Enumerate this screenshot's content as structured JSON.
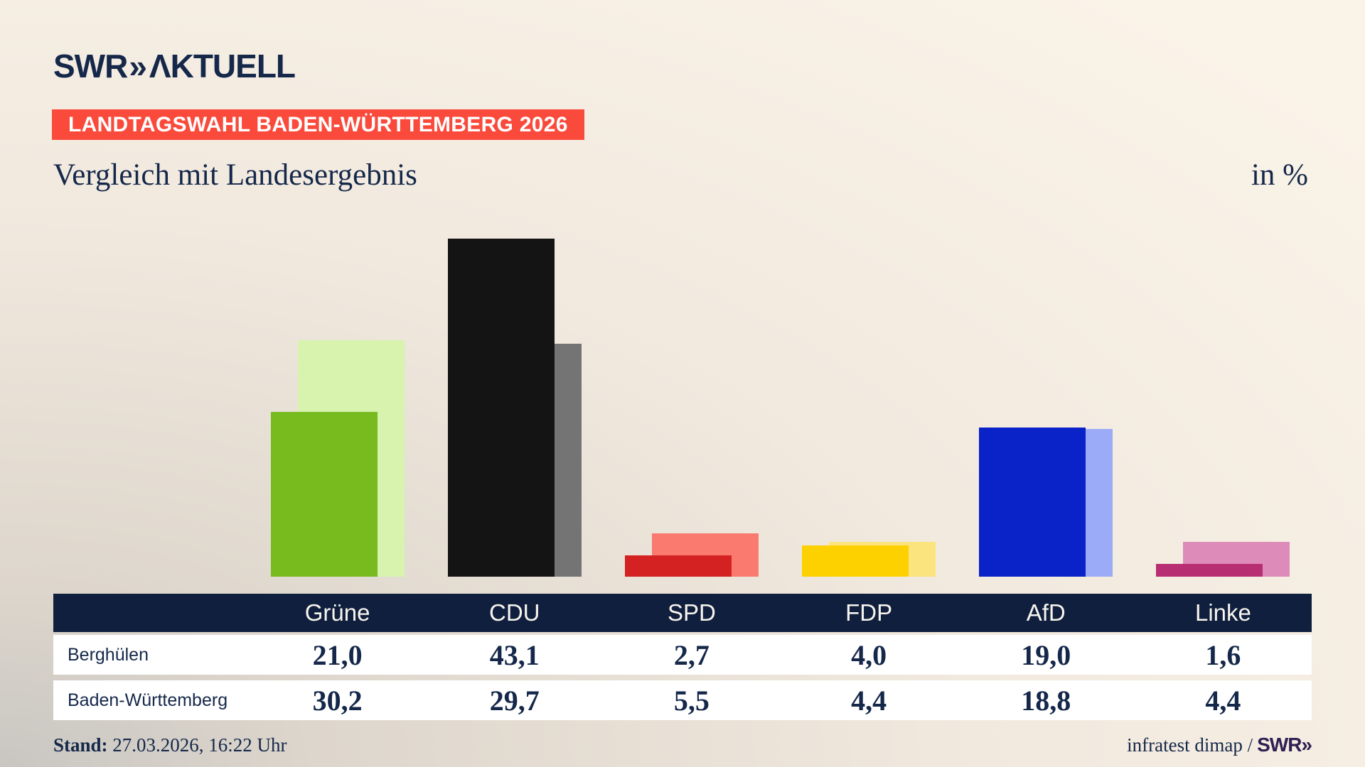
{
  "header": {
    "logo_swr": "SWR",
    "logo_chevrons": "»",
    "logo_aktuell": "ΛKTUELL"
  },
  "badge": {
    "label": "LANDTAGSWAHL BADEN-WÜRTTEMBERG 2026"
  },
  "title": "Vergleich mit Landesergebnis",
  "unit_label": "in %",
  "chart_data": {
    "type": "bar",
    "categories": [
      "Grüne",
      "CDU",
      "SPD",
      "FDP",
      "AfD",
      "Linke"
    ],
    "series": [
      {
        "name": "Berghülen",
        "values": [
          21.0,
          43.1,
          2.7,
          4.0,
          19.0,
          1.6
        ],
        "colors": [
          "#77bb1f",
          "#141414",
          "#d32221",
          "#fdd100",
          "#0a23c8",
          "#b82e73"
        ]
      },
      {
        "name": "Baden-Württemberg",
        "values": [
          30.2,
          29.7,
          5.5,
          4.4,
          18.8,
          4.4
        ],
        "colors": [
          "#d7f3ae",
          "#747474",
          "#fa7a70",
          "#fbe37d",
          "#9cabf7",
          "#dd8bb8"
        ]
      }
    ],
    "title": "Vergleich mit Landesergebnis",
    "unit": "in %",
    "ylim": [
      0,
      49
    ],
    "grid": false,
    "legend": "table below chart acts as legend",
    "baseline_note": "bars bottom-aligned, no axis lines or tick labels shown"
  },
  "table": {
    "columns": [
      "Grüne",
      "CDU",
      "SPD",
      "FDP",
      "AfD",
      "Linke"
    ],
    "rows": [
      {
        "label": "Berghülen",
        "values": [
          "21,0",
          "43,1",
          "2,7",
          "4,0",
          "19,0",
          "1,6"
        ]
      },
      {
        "label": "Baden-Württemberg",
        "values": [
          "30,2",
          "29,7",
          "5,5",
          "4,4",
          "18,8",
          "4,4"
        ]
      }
    ]
  },
  "footer": {
    "stand_label": "Stand:",
    "stand_value": "27.03.2026, 16:22 Uhr",
    "source": "infratest dimap /",
    "source_logo": "SWR»"
  },
  "colors": {
    "background_cream": "#faf3e8",
    "background_gray": "#c9c6c2",
    "navy_text": "#15284a",
    "table_header_bg": "#101f3d",
    "badge_red": "#f94a3c",
    "footer_logo_purple": "#2e2052",
    "row_bg": "#ffffff"
  }
}
